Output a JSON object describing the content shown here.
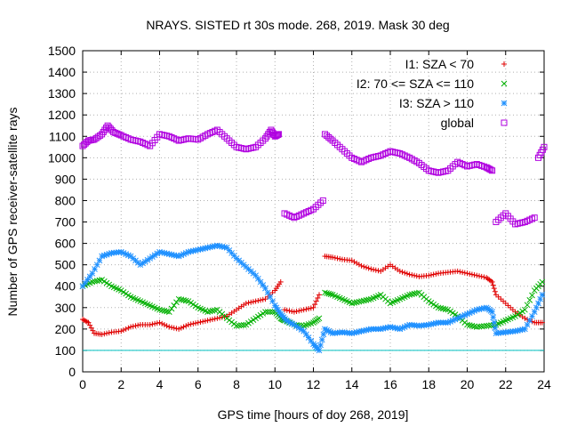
{
  "chart_data": {
    "type": "scatter",
    "title": "NRAYS. SISTED rt 30s mode. 268, 2019. Mask 30 deg",
    "xlabel": "GPS time [hours of doy 268, 2019]",
    "ylabel": "Number of GPS receiver-satellite rays",
    "xlim": [
      0,
      24
    ],
    "ylim": [
      0,
      1500
    ],
    "x_ticks": [
      "0",
      "2",
      "4",
      "6",
      "8",
      "10",
      "12",
      "14",
      "16",
      "18",
      "20",
      "22",
      "24"
    ],
    "y_ticks": [
      "0",
      "100",
      "200",
      "300",
      "400",
      "500",
      "600",
      "700",
      "800",
      "900",
      "1000",
      "1100",
      "1200",
      "1300",
      "1400",
      "1500"
    ],
    "grid": true,
    "legend_position": "top-right",
    "reference_line": {
      "y": 100,
      "color": "#00c0c0"
    },
    "series": [
      {
        "name": "I1: SZA < 70",
        "marker": "plus",
        "color": "#e00000",
        "points": [
          [
            0,
            245
          ],
          [
            0.3,
            230
          ],
          [
            0.6,
            180
          ],
          [
            1,
            175
          ],
          [
            1.5,
            185
          ],
          [
            2,
            190
          ],
          [
            2.5,
            210
          ],
          [
            3,
            220
          ],
          [
            3.5,
            220
          ],
          [
            4,
            230
          ],
          [
            4.5,
            210
          ],
          [
            5,
            200
          ],
          [
            5.5,
            220
          ],
          [
            6,
            230
          ],
          [
            6.5,
            240
          ],
          [
            7,
            250
          ],
          [
            7.5,
            260
          ],
          [
            8,
            290
          ],
          [
            8.5,
            320
          ],
          [
            9,
            330
          ],
          [
            9.5,
            340
          ],
          [
            10,
            380
          ],
          [
            10.3,
            420
          ],
          [
            10.5,
            290
          ],
          [
            11,
            280
          ],
          [
            11.5,
            290
          ],
          [
            12,
            300
          ],
          [
            12.3,
            360
          ],
          [
            12.6,
            540
          ],
          [
            13,
            535
          ],
          [
            13.5,
            525
          ],
          [
            14,
            520
          ],
          [
            14.5,
            495
          ],
          [
            15,
            480
          ],
          [
            15.5,
            470
          ],
          [
            16,
            500
          ],
          [
            16.5,
            470
          ],
          [
            17,
            455
          ],
          [
            17.5,
            445
          ],
          [
            18,
            450
          ],
          [
            18.5,
            460
          ],
          [
            19,
            465
          ],
          [
            19.5,
            470
          ],
          [
            20,
            460
          ],
          [
            20.5,
            450
          ],
          [
            21,
            440
          ],
          [
            21.3,
            420
          ],
          [
            21.5,
            360
          ],
          [
            22,
            320
          ],
          [
            22.5,
            280
          ],
          [
            23,
            250
          ],
          [
            23.5,
            230
          ],
          [
            23.9,
            230
          ]
        ]
      },
      {
        "name": "I2: 70 <= SZA <= 110",
        "marker": "cross",
        "color": "#00b000",
        "points": [
          [
            0,
            400
          ],
          [
            0.5,
            420
          ],
          [
            1,
            430
          ],
          [
            1.5,
            400
          ],
          [
            2,
            380
          ],
          [
            2.5,
            350
          ],
          [
            3,
            330
          ],
          [
            3.5,
            310
          ],
          [
            4,
            290
          ],
          [
            4.5,
            280
          ],
          [
            5,
            340
          ],
          [
            5.5,
            330
          ],
          [
            6,
            300
          ],
          [
            6.5,
            280
          ],
          [
            7,
            290
          ],
          [
            7.5,
            250
          ],
          [
            8,
            215
          ],
          [
            8.5,
            220
          ],
          [
            9,
            250
          ],
          [
            9.5,
            280
          ],
          [
            10,
            280
          ],
          [
            10.3,
            250
          ],
          [
            10.5,
            240
          ],
          [
            11,
            220
          ],
          [
            11.5,
            215
          ],
          [
            12,
            230
          ],
          [
            12.3,
            250
          ],
          [
            12.6,
            370
          ],
          [
            13,
            360
          ],
          [
            13.5,
            340
          ],
          [
            14,
            320
          ],
          [
            14.5,
            330
          ],
          [
            15,
            340
          ],
          [
            15.5,
            360
          ],
          [
            16,
            320
          ],
          [
            16.5,
            340
          ],
          [
            17,
            360
          ],
          [
            17.5,
            370
          ],
          [
            18,
            330
          ],
          [
            18.5,
            300
          ],
          [
            19,
            290
          ],
          [
            19.5,
            260
          ],
          [
            20,
            220
          ],
          [
            20.5,
            210
          ],
          [
            21,
            215
          ],
          [
            21.5,
            220
          ],
          [
            22,
            240
          ],
          [
            22.5,
            260
          ],
          [
            23,
            290
          ],
          [
            23.5,
            380
          ],
          [
            23.9,
            420
          ]
        ]
      },
      {
        "name": "I3: SZA > 110",
        "marker": "star",
        "color": "#1e90ff",
        "points": [
          [
            0,
            400
          ],
          [
            0.5,
            460
          ],
          [
            1,
            540
          ],
          [
            1.5,
            555
          ],
          [
            2,
            560
          ],
          [
            2.5,
            540
          ],
          [
            3,
            500
          ],
          [
            3.5,
            530
          ],
          [
            4,
            560
          ],
          [
            4.5,
            550
          ],
          [
            5,
            540
          ],
          [
            5.5,
            560
          ],
          [
            6,
            570
          ],
          [
            6.5,
            580
          ],
          [
            7,
            590
          ],
          [
            7.5,
            580
          ],
          [
            8,
            530
          ],
          [
            8.5,
            490
          ],
          [
            9,
            450
          ],
          [
            9.5,
            390
          ],
          [
            10,
            310
          ],
          [
            10.3,
            270
          ],
          [
            10.6,
            240
          ],
          [
            11,
            220
          ],
          [
            11.5,
            190
          ],
          [
            12,
            130
          ],
          [
            12.3,
            100
          ],
          [
            12.6,
            200
          ],
          [
            13,
            180
          ],
          [
            13.5,
            185
          ],
          [
            14,
            180
          ],
          [
            14.5,
            190
          ],
          [
            15,
            200
          ],
          [
            15.5,
            200
          ],
          [
            16,
            210
          ],
          [
            16.5,
            200
          ],
          [
            17,
            220
          ],
          [
            17.5,
            215
          ],
          [
            18,
            220
          ],
          [
            18.5,
            230
          ],
          [
            19,
            230
          ],
          [
            19.5,
            250
          ],
          [
            20,
            270
          ],
          [
            20.5,
            290
          ],
          [
            21,
            300
          ],
          [
            21.3,
            280
          ],
          [
            21.5,
            180
          ],
          [
            22,
            185
          ],
          [
            22.5,
            190
          ],
          [
            23,
            200
          ],
          [
            23.5,
            280
          ],
          [
            23.9,
            360
          ]
        ]
      },
      {
        "name": "global",
        "marker": "square",
        "color": "#b000e0",
        "points": [
          [
            0,
            1055
          ],
          [
            0.3,
            1080
          ],
          [
            0.6,
            1085
          ],
          [
            1,
            1110
          ],
          [
            1.3,
            1150
          ],
          [
            1.6,
            1120
          ],
          [
            2,
            1105
          ],
          [
            2.5,
            1085
          ],
          [
            3,
            1075
          ],
          [
            3.5,
            1055
          ],
          [
            4,
            1110
          ],
          [
            4.5,
            1100
          ],
          [
            5,
            1080
          ],
          [
            5.5,
            1090
          ],
          [
            6,
            1085
          ],
          [
            6.5,
            1110
          ],
          [
            7,
            1130
          ],
          [
            7.5,
            1090
          ],
          [
            8,
            1050
          ],
          [
            8.5,
            1040
          ],
          [
            9,
            1050
          ],
          [
            9.5,
            1090
          ],
          [
            9.8,
            1130
          ],
          [
            10,
            1100
          ],
          [
            10.2,
            1110
          ],
          [
            10.5,
            740
          ],
          [
            11,
            720
          ],
          [
            11.5,
            740
          ],
          [
            12,
            760
          ],
          [
            12.5,
            800
          ],
          [
            12.6,
            1110
          ],
          [
            13,
            1080
          ],
          [
            13.5,
            1040
          ],
          [
            14,
            1000
          ],
          [
            14.5,
            980
          ],
          [
            15,
            1000
          ],
          [
            15.5,
            1010
          ],
          [
            16,
            1030
          ],
          [
            16.5,
            1020
          ],
          [
            17,
            1000
          ],
          [
            17.5,
            975
          ],
          [
            18,
            940
          ],
          [
            18.5,
            930
          ],
          [
            19,
            940
          ],
          [
            19.5,
            980
          ],
          [
            20,
            960
          ],
          [
            20.5,
            970
          ],
          [
            21,
            955
          ],
          [
            21.3,
            940
          ],
          [
            21.5,
            700
          ],
          [
            22,
            740
          ],
          [
            22.5,
            690
          ],
          [
            23,
            700
          ],
          [
            23.5,
            720
          ],
          [
            23.7,
            1000
          ],
          [
            24,
            1050
          ]
        ]
      }
    ]
  }
}
